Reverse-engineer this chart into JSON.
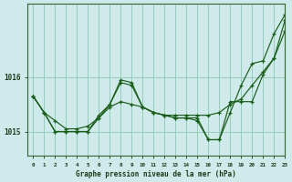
{
  "title": "Graphe pression niveau de la mer (hPa)",
  "bg_color": "#ceeaea",
  "grid_color": "#99ccbb",
  "line_color": "#1a5c1a",
  "xlim": [
    -0.5,
    23
  ],
  "ylim": [
    1014.55,
    1017.35
  ],
  "yticks": [
    1015,
    1016
  ],
  "xticks": [
    0,
    1,
    2,
    3,
    4,
    5,
    6,
    7,
    8,
    9,
    10,
    11,
    12,
    13,
    14,
    15,
    16,
    17,
    18,
    19,
    20,
    21,
    22,
    23
  ],
  "series": [
    [
      1015.65,
      1015.35,
      1015.2,
      1015.05,
      1015.05,
      1015.1,
      1015.25,
      1015.45,
      1015.55,
      1015.5,
      1015.45,
      1015.35,
      1015.3,
      1015.3,
      1015.3,
      1015.3,
      1015.3,
      1015.35,
      1015.5,
      1015.6,
      1015.85,
      1016.1,
      1016.35,
      1016.85
    ],
    [
      1015.65,
      1015.35,
      1015.0,
      1015.0,
      1015.0,
      1015.0,
      1015.3,
      1015.5,
      1015.9,
      1015.85,
      1015.45,
      1015.35,
      1015.3,
      1015.25,
      1015.25,
      1015.25,
      1014.85,
      1014.85,
      1015.55,
      1015.55,
      1015.55,
      1016.05,
      1016.35,
      1017.05
    ],
    [
      1015.65,
      1015.35,
      1015.0,
      1015.0,
      1015.0,
      1015.0,
      1015.25,
      1015.5,
      1015.95,
      1015.9,
      1015.45,
      1015.35,
      1015.3,
      1015.25,
      1015.25,
      1015.2,
      1014.85,
      1014.85,
      1015.35,
      1015.85,
      1016.25,
      1016.3,
      1016.8,
      1017.15
    ]
  ]
}
